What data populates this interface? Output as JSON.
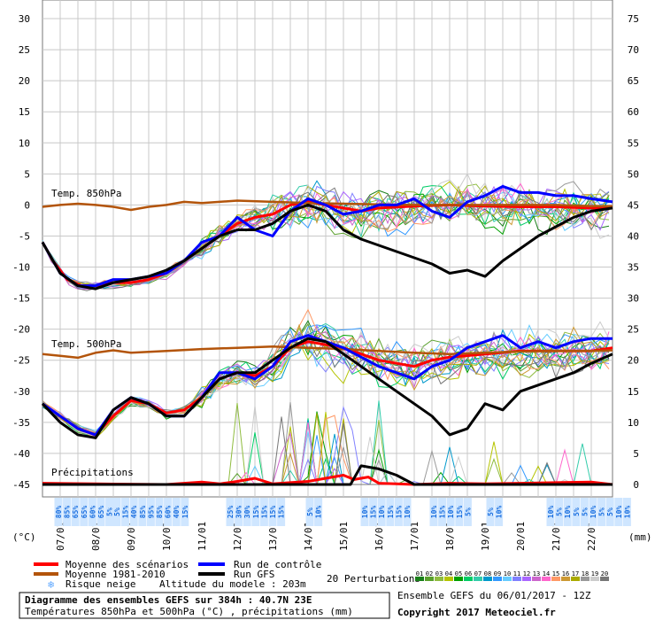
{
  "chart_data": {
    "type": "line",
    "title": "Diagramme des ensembles GEFS sur 384h : 40.7N 23E",
    "subtitle": "Températures 850hPa et 500hPa (°C) , précipitations (mm)",
    "left_axis_label": "(°C)",
    "right_axis_label": "(mm)",
    "ylim_left": [
      -47,
      33
    ],
    "ylim_right": [
      -2,
      78
    ],
    "left_ticks": [
      30,
      25,
      20,
      15,
      10,
      5,
      0,
      -5,
      -10,
      -15,
      -20,
      -25,
      -30,
      -35,
      -40,
      -45
    ],
    "right_ticks": [
      75,
      70,
      65,
      60,
      55,
      50,
      45,
      40,
      35,
      30,
      25,
      20,
      15,
      10,
      5,
      0
    ],
    "x_range": [
      6.5,
      22.6
    ],
    "dates": [
      "07/01",
      "08/01",
      "09/01",
      "10/01",
      "11/01",
      "12/01",
      "13/01",
      "14/01",
      "15/01",
      "16/01",
      "17/01",
      "18/01",
      "19/01",
      "20/01",
      "21/01",
      "22/01"
    ],
    "section_labels": {
      "t850": "Temp. 850hPa",
      "t500": "Temp. 500hPa",
      "precip": "Précipitations"
    },
    "series": [
      {
        "name": "Moyenne des scénarios (850hPa)",
        "color": "#ff0000",
        "x": [
          6.5,
          6.8,
          7.2,
          7.6,
          8.0,
          8.5,
          9.0,
          9.5,
          10.0,
          10.5,
          11.0,
          11.5,
          12.0,
          12.5,
          13.0,
          13.5,
          14.0,
          14.5,
          15.0,
          15.5,
          16.0,
          17.0,
          18.0,
          19.0,
          20.0,
          21.0,
          22.0,
          22.6
        ],
        "y": [
          -6,
          -9,
          -12,
          -13,
          -13,
          -12.5,
          -12.5,
          -12,
          -11,
          -9,
          -7,
          -5,
          -3,
          -2,
          -1.5,
          0,
          0.5,
          0,
          -0.5,
          -1,
          -0.5,
          -0.2,
          0,
          -0.2,
          -0.3,
          -0.3,
          -0.5,
          -0.5
        ]
      },
      {
        "name": "Moyenne 1981-2010 (850hPa)",
        "color": "#b3540a",
        "x": [
          6.5,
          7.0,
          7.5,
          8.0,
          8.5,
          9.0,
          9.5,
          10.0,
          10.5,
          11.0,
          12.0,
          13.0,
          14.0,
          15.0,
          16.0,
          17.0,
          18.0,
          19.0,
          20.0,
          21.0,
          22.0,
          22.6
        ],
        "y": [
          -0.3,
          0,
          0.2,
          0,
          -0.3,
          -0.8,
          -0.3,
          0,
          0.5,
          0.3,
          0.7,
          0.5,
          0.3,
          0.2,
          0.1,
          0,
          0,
          0,
          0,
          0,
          -0.2,
          -0.2
        ]
      },
      {
        "name": "Run de contrôle (850hPa)",
        "color": "#0000ff",
        "x": [
          6.5,
          7.0,
          7.5,
          8.0,
          8.5,
          9.0,
          9.5,
          10.0,
          10.5,
          11.0,
          11.5,
          12.0,
          12.5,
          13.0,
          13.5,
          14.0,
          14.5,
          15.0,
          15.5,
          16.0,
          16.5,
          17.0,
          17.5,
          18.0,
          18.5,
          19.0,
          19.5,
          20.0,
          20.5,
          21.0,
          21.5,
          22.0,
          22.6
        ],
        "y": [
          -6,
          -11,
          -13,
          -13,
          -12,
          -12,
          -11.5,
          -11,
          -9,
          -6,
          -5,
          -2,
          -4,
          -5,
          -1,
          1,
          0,
          -1.5,
          -1,
          0,
          0,
          1,
          -1,
          -2,
          0.5,
          1.5,
          3,
          2,
          2,
          1.5,
          1.5,
          1,
          0.5
        ]
      },
      {
        "name": "Run GFS (850hPa)",
        "color": "#000000",
        "x": [
          6.5,
          7.0,
          7.5,
          8.0,
          8.5,
          9.0,
          9.5,
          10.0,
          10.5,
          11.0,
          11.5,
          12.0,
          12.5,
          13.0,
          13.5,
          14.0,
          14.5,
          15.0,
          15.5,
          16.0,
          16.5,
          17.0,
          17.5,
          18.0,
          18.5,
          19.0,
          19.5,
          20.0,
          20.5,
          21.0,
          21.5,
          22.0,
          22.6
        ],
        "y": [
          -6,
          -11,
          -13,
          -13.5,
          -12.5,
          -12,
          -11.5,
          -10.5,
          -9,
          -7,
          -5,
          -4,
          -4,
          -3,
          -1,
          0,
          -1,
          -4,
          -5.5,
          -6.5,
          -7.5,
          -8.5,
          -9.5,
          -11,
          -10.5,
          -11.5,
          -9,
          -7,
          -5,
          -3.5,
          -2,
          -1,
          -0.5
        ]
      },
      {
        "name": "Moyenne des scénarios (500hPa)",
        "color": "#ff0000",
        "x": [
          6.5,
          7.0,
          7.5,
          8.0,
          8.5,
          9.0,
          9.5,
          10.0,
          10.5,
          11.0,
          11.5,
          12.0,
          12.5,
          13.0,
          13.5,
          14.0,
          14.5,
          15.0,
          15.5,
          16.0,
          16.5,
          17.0,
          17.5,
          18.0,
          19.0,
          20.0,
          21.0,
          22.0,
          22.6
        ],
        "y": [
          -32,
          -34,
          -36,
          -37,
          -34,
          -31.5,
          -32,
          -33.5,
          -33,
          -31,
          -28,
          -27,
          -27.5,
          -26,
          -23,
          -22,
          -22.5,
          -23,
          -24,
          -25,
          -25.5,
          -26,
          -25,
          -24.5,
          -24,
          -23.5,
          -23.5,
          -23.5,
          -23
        ]
      },
      {
        "name": "Moyenne 1981-2010 (500hPa)",
        "color": "#b3540a",
        "x": [
          6.5,
          7.0,
          7.5,
          8.0,
          8.5,
          9.0,
          10.0,
          11.0,
          12.0,
          13.0,
          14.0,
          15.0,
          16.0,
          17.0,
          18.0,
          19.0,
          20.0,
          21.0,
          22.0,
          22.6
        ],
        "y": [
          -24,
          -24.3,
          -24.6,
          -23.8,
          -23.4,
          -23.8,
          -23.5,
          -23.2,
          -23,
          -22.8,
          -23,
          -23.2,
          -23.5,
          -23.8,
          -24,
          -23.8,
          -23.6,
          -23.5,
          -23.5,
          -23.4
        ]
      },
      {
        "name": "Run de contrôle (500hPa)",
        "color": "#0000ff",
        "x": [
          6.5,
          7.0,
          7.5,
          8.0,
          8.5,
          9.0,
          9.5,
          10.0,
          10.5,
          11.0,
          11.5,
          12.0,
          12.5,
          13.0,
          13.5,
          14.0,
          14.5,
          15.0,
          15.5,
          16.0,
          16.5,
          17.0,
          17.5,
          18.0,
          18.5,
          19.0,
          19.5,
          20.0,
          20.5,
          21.0,
          21.5,
          22.0,
          22.6
        ],
        "y": [
          -32,
          -34,
          -36,
          -37,
          -33,
          -31,
          -32,
          -34,
          -34,
          -31,
          -27,
          -27,
          -28,
          -26,
          -22,
          -21,
          -22,
          -23,
          -24.5,
          -26,
          -27,
          -28,
          -26,
          -25,
          -23,
          -22,
          -21,
          -23,
          -22,
          -23,
          -22,
          -21.5,
          -21.5
        ]
      },
      {
        "name": "Run GFS (500hPa)",
        "color": "#000000",
        "x": [
          6.5,
          7.0,
          7.5,
          8.0,
          8.5,
          9.0,
          9.5,
          10.0,
          10.5,
          11.0,
          11.5,
          12.0,
          12.5,
          13.0,
          13.5,
          14.0,
          14.5,
          15.0,
          15.5,
          16.0,
          16.5,
          17.0,
          17.5,
          18.0,
          18.5,
          19.0,
          19.5,
          20.0,
          20.5,
          21.0,
          21.5,
          22.0,
          22.6
        ],
        "y": [
          -32,
          -35,
          -37,
          -37.5,
          -33,
          -31,
          -32,
          -34,
          -34,
          -31,
          -28,
          -27,
          -27,
          -25,
          -23,
          -21.5,
          -22,
          -24,
          -26,
          -28,
          -30,
          -32,
          -34,
          -37,
          -36,
          -32,
          -33,
          -30,
          -29,
          -28,
          -27,
          -25.5,
          -24
        ]
      },
      {
        "name": "Moyenne des scénarios (précip.)",
        "color": "#ff0000",
        "x": [
          6.5,
          8,
          10,
          11,
          11.5,
          12,
          12.5,
          13,
          14,
          15,
          15.3,
          15.7,
          16,
          16.5,
          17,
          18,
          19,
          20,
          21,
          22,
          22.6
        ],
        "y": [
          -44.8,
          -44.9,
          -45,
          -44.6,
          -44.9,
          -44.5,
          -44,
          -44.9,
          -44.5,
          -43.5,
          -44.2,
          -43.8,
          -44.8,
          -44.9,
          -45,
          -44.8,
          -44.9,
          -44.8,
          -44.7,
          -44.6,
          -45
        ]
      },
      {
        "name": "Run GFS (précip.)",
        "color": "#000000",
        "x": [
          6.5,
          12,
          13,
          15.2,
          15.5,
          16.0,
          16.5,
          17,
          22.6
        ],
        "y": [
          -45,
          -45,
          -45,
          -45,
          -42,
          -42.5,
          -43.5,
          -45,
          -45
        ]
      }
    ],
    "snow_risk_columns": [
      {
        "x": 6.95,
        "labels": [
          "80%",
          "85%",
          "65%",
          "65%",
          "60%",
          "65%",
          "5%"
        ]
      },
      {
        "x": 8.6,
        "labels": [
          "5%",
          "15%",
          "40%",
          "85%",
          "95%",
          "85%",
          "60%",
          "40%",
          "15%"
        ]
      },
      {
        "x": 11.8,
        "labels": [
          "25%",
          "30%",
          "30%",
          "15%",
          "15%",
          "15%",
          "15%"
        ]
      },
      {
        "x": 14.05,
        "labels": [
          "5%",
          "10%"
        ]
      },
      {
        "x": 15.6,
        "labels": [
          "10%",
          "15%",
          "10%",
          "15%",
          "15%",
          "10%"
        ]
      },
      {
        "x": 17.55,
        "labels": [
          "10%",
          "15%",
          "10%",
          "15%",
          "5%"
        ]
      },
      {
        "x": 19.15,
        "labels": [
          "5%",
          "10%"
        ]
      },
      {
        "x": 20.85,
        "labels": [
          "10%",
          "5%",
          "10%",
          "5%",
          "5%",
          "10%",
          "5%",
          "5%",
          "10%",
          "10%"
        ]
      }
    ]
  },
  "legend": {
    "items": [
      {
        "label": "Moyenne des scénarios",
        "color": "#ff0000"
      },
      {
        "label": "Moyenne 1981-2010",
        "color": "#b3540a"
      },
      {
        "label": "Risque neige",
        "color": "#5fa8ff"
      },
      {
        "label": "Run de contrôle",
        "color": "#0000ff"
      },
      {
        "label": "Run GFS",
        "color": "#000000"
      }
    ],
    "altitude_text": "Altitude du modele : 203m",
    "perturbations_label": "20 Perturbations",
    "perturbation_numbers": [
      "01",
      "02",
      "03",
      "04",
      "05",
      "06",
      "07",
      "08",
      "09",
      "10",
      "11",
      "12",
      "13",
      "14",
      "15",
      "16",
      "17",
      "18",
      "19",
      "20"
    ],
    "perturbation_colors": [
      "#1a7f1a",
      "#5aa02c",
      "#8fbc3f",
      "#b5c400",
      "#00a000",
      "#00cc66",
      "#33ccaa",
      "#0099cc",
      "#3399ff",
      "#66ccff",
      "#8080ff",
      "#aa66ff",
      "#cc66cc",
      "#ff66cc",
      "#ff9966",
      "#cc9933",
      "#aaaa00",
      "#999999",
      "#cccccc",
      "#777777"
    ]
  },
  "footer": {
    "title": "Diagramme des ensembles GEFS sur 384h : 40.7N 23E",
    "subtitle": "Températures 850hPa et 500hPa (°C) , précipitations (mm)",
    "run": "Ensemble GEFS du 06/01/2017 - 12Z",
    "copyright": "Copyright 2017 Meteociel.fr"
  }
}
